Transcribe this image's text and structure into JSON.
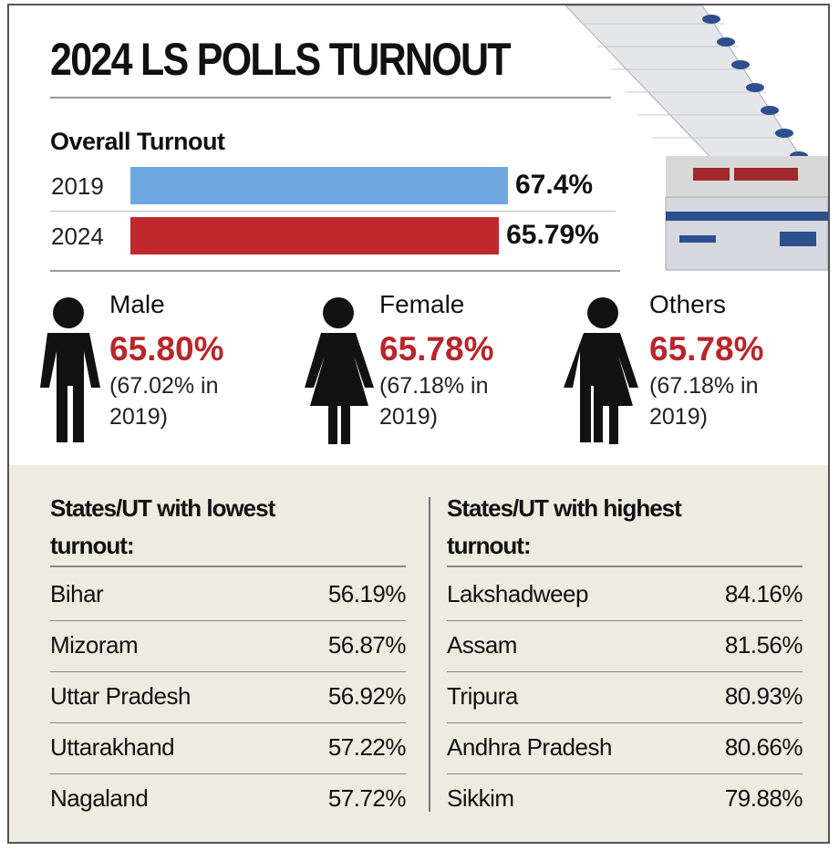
{
  "chart_data": {
    "type": "bar",
    "title": "2024 LS POLLS TURNOUT",
    "subtitle": "Overall Turnout",
    "categories": [
      "2019",
      "2024"
    ],
    "values": [
      67.4,
      65.79
    ],
    "value_labels": [
      "67.4%",
      "65.79%"
    ],
    "colors": [
      "#6fa8e0",
      "#c0282d"
    ]
  },
  "gender": [
    {
      "label": "Male",
      "value": "65.80%",
      "previous": "(67.02% in 2019)"
    },
    {
      "label": "Female",
      "value": "65.78%",
      "previous": "(67.18% in 2019)"
    },
    {
      "label": "Others",
      "value": "65.78%",
      "previous": "(67.18% in 2019)"
    }
  ],
  "lowest": {
    "title": "States/UT with lowest turnout:",
    "rows": [
      [
        "Bihar",
        "56.19%"
      ],
      [
        "Mizoram",
        "56.87%"
      ],
      [
        "Uttar Pradesh",
        "56.92%"
      ],
      [
        "Uttarakhand",
        "57.22%"
      ],
      [
        "Nagaland",
        "57.72%"
      ]
    ]
  },
  "highest": {
    "title": "States/UT with highest turnout:",
    "rows": [
      [
        "Lakshadweep",
        "84.16%"
      ],
      [
        "Assam",
        "81.56%"
      ],
      [
        "Tripura",
        "80.93%"
      ],
      [
        "Andhra Pradesh",
        "80.66%"
      ],
      [
        "Sikkim",
        "79.88%"
      ]
    ]
  }
}
